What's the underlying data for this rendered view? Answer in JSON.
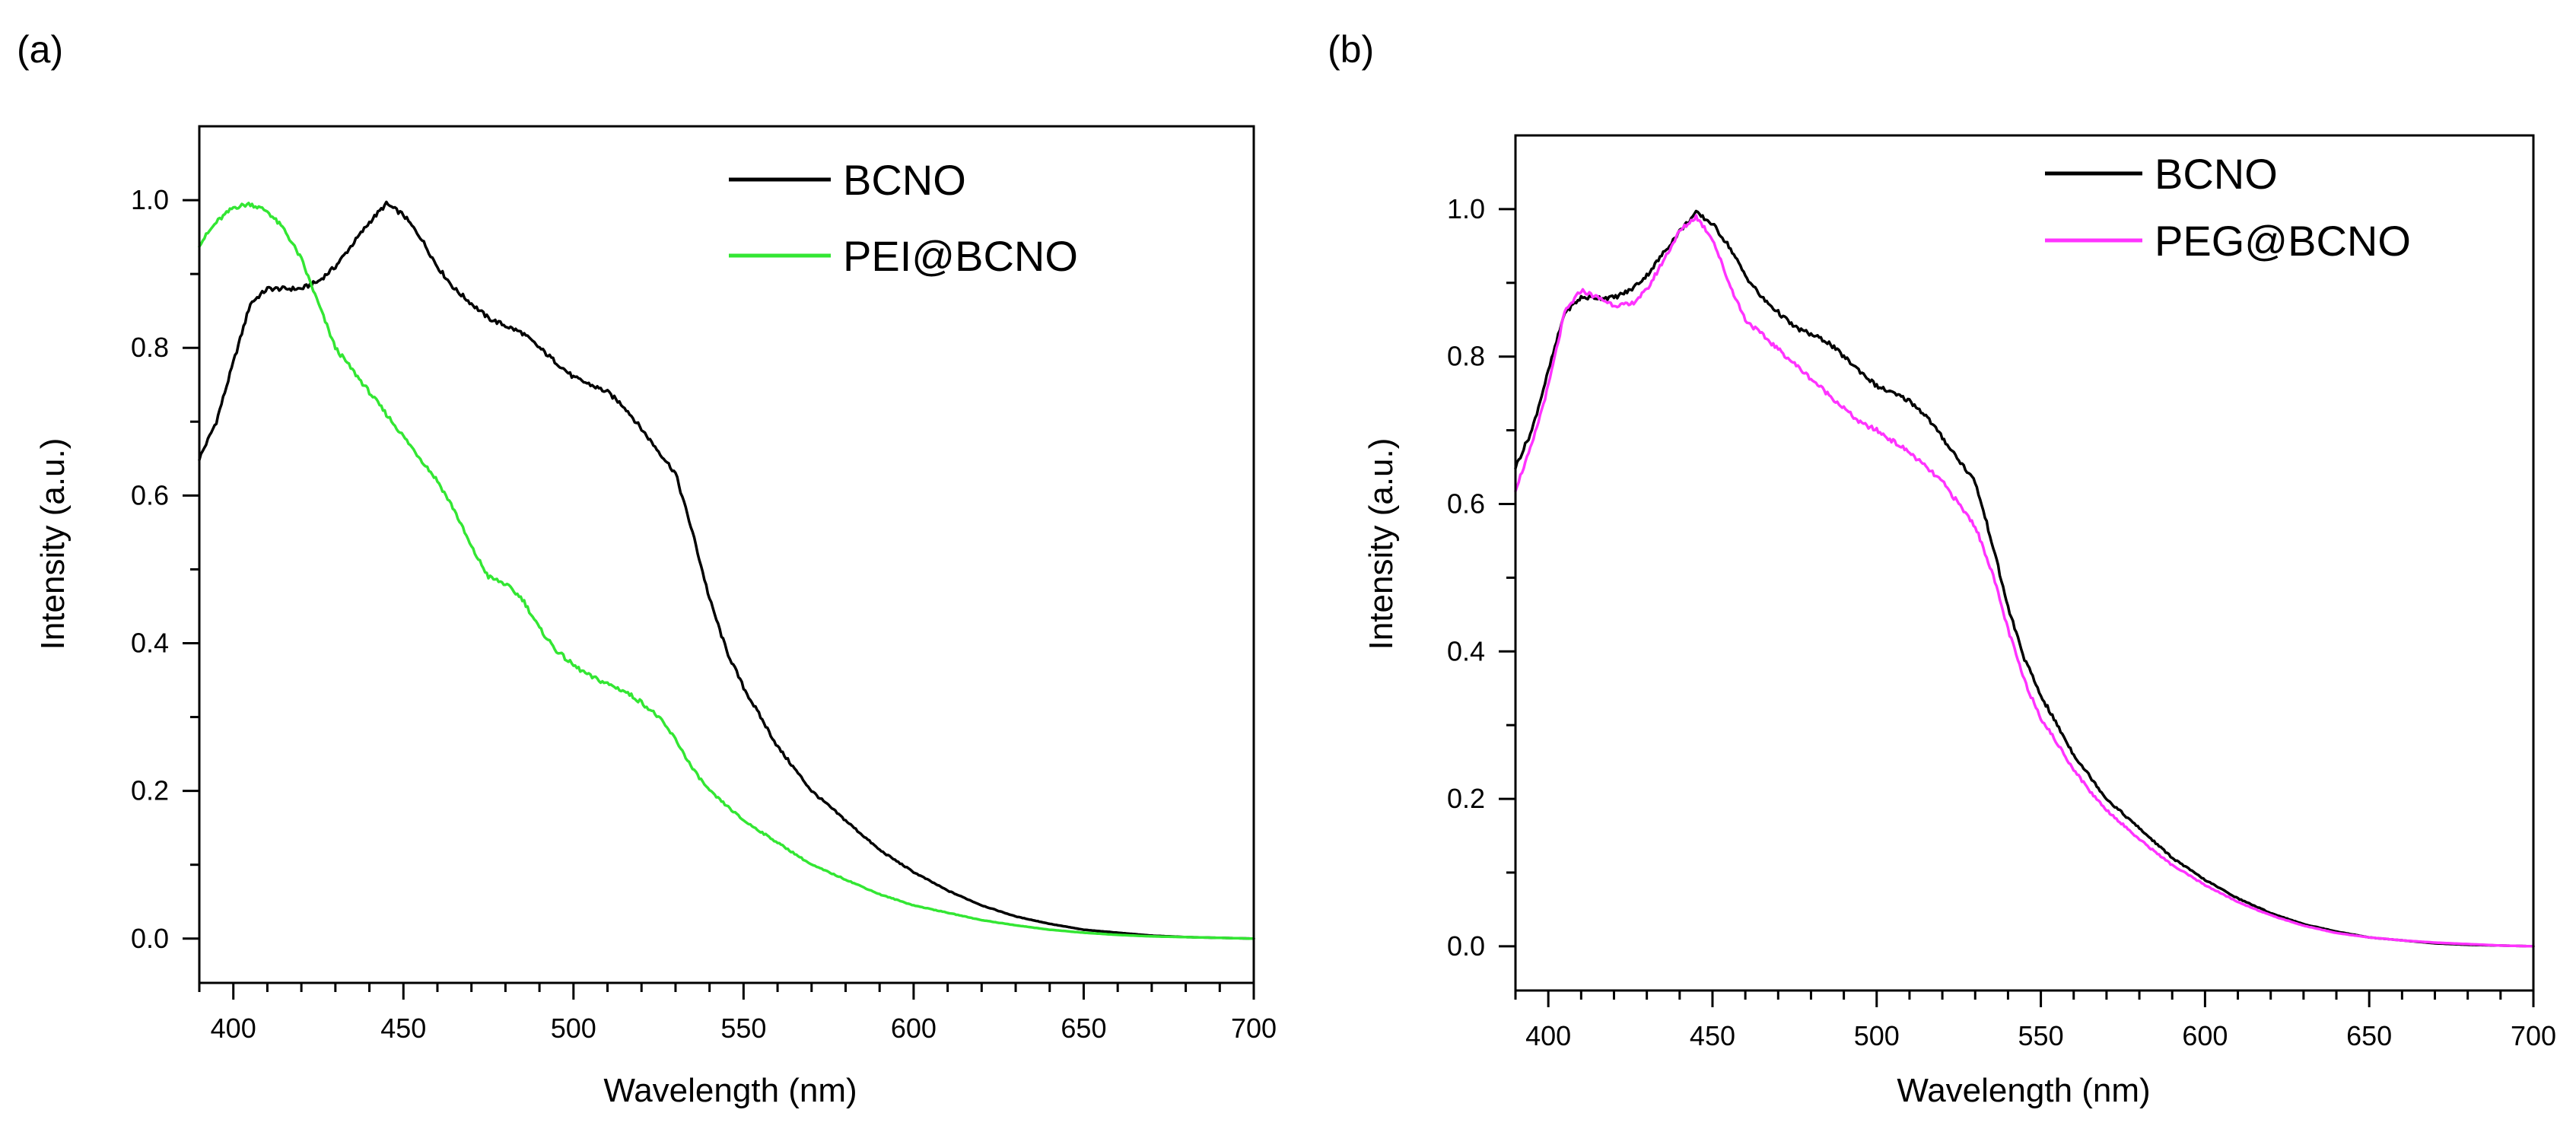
{
  "colors": {
    "BCNO": "#000000",
    "PEI@BCNO": "#33e633",
    "PEG@BCNO": "#ff33ff"
  },
  "chart_data": [
    {
      "panel_label": "(a)",
      "type": "line",
      "title": "",
      "xlabel": "Wavelength (nm)",
      "ylabel": "Intensity (a.u.)",
      "xlim": [
        390,
        700
      ],
      "ylim": [
        -0.06,
        1.1
      ],
      "xticks": [
        400,
        450,
        500,
        550,
        600,
        650,
        700
      ],
      "xtick_labels": [
        "400",
        "450",
        "500",
        "550",
        "600",
        "650",
        "700"
      ],
      "yticks": [
        0.0,
        0.2,
        0.4,
        0.6,
        0.8,
        1.0
      ],
      "ytick_labels": [
        "0.0",
        "0.2",
        "0.4",
        "0.6",
        "0.8",
        "1.0"
      ],
      "legend_position": "top-right",
      "series": [
        {
          "name": "BCNO",
          "color": "#000000",
          "x": [
            390,
            395,
            400,
            405,
            410,
            415,
            420,
            425,
            430,
            435,
            440,
            445,
            450,
            455,
            460,
            465,
            470,
            475,
            480,
            485,
            490,
            495,
            500,
            505,
            510,
            515,
            520,
            525,
            530,
            535,
            540,
            545,
            550,
            555,
            560,
            565,
            570,
            575,
            580,
            590,
            600,
            610,
            620,
            630,
            640,
            650,
            660,
            670,
            680,
            690,
            700
          ],
          "values": [
            0.65,
            0.7,
            0.78,
            0.86,
            0.88,
            0.88,
            0.88,
            0.89,
            0.91,
            0.94,
            0.97,
            0.995,
            0.98,
            0.95,
            0.91,
            0.88,
            0.86,
            0.84,
            0.83,
            0.82,
            0.8,
            0.78,
            0.76,
            0.75,
            0.74,
            0.72,
            0.69,
            0.66,
            0.63,
            0.55,
            0.46,
            0.39,
            0.34,
            0.3,
            0.26,
            0.23,
            0.2,
            0.18,
            0.16,
            0.12,
            0.09,
            0.065,
            0.045,
            0.03,
            0.02,
            0.012,
            0.008,
            0.004,
            0.002,
            0.001,
            0.0
          ]
        },
        {
          "name": "PEI@BCNO",
          "color": "#33e633",
          "x": [
            390,
            395,
            400,
            405,
            410,
            415,
            420,
            425,
            430,
            435,
            440,
            445,
            450,
            455,
            460,
            465,
            470,
            475,
            480,
            485,
            490,
            495,
            500,
            505,
            510,
            515,
            520,
            525,
            530,
            535,
            540,
            545,
            550,
            560,
            570,
            580,
            590,
            600,
            610,
            620,
            630,
            640,
            650,
            660,
            670,
            680,
            690,
            700
          ],
          "values": [
            0.94,
            0.97,
            0.99,
            0.995,
            0.985,
            0.96,
            0.92,
            0.86,
            0.8,
            0.77,
            0.74,
            0.71,
            0.68,
            0.65,
            0.62,
            0.58,
            0.53,
            0.49,
            0.48,
            0.46,
            0.42,
            0.39,
            0.37,
            0.355,
            0.345,
            0.335,
            0.32,
            0.3,
            0.27,
            0.23,
            0.2,
            0.18,
            0.16,
            0.13,
            0.1,
            0.08,
            0.06,
            0.045,
            0.035,
            0.025,
            0.018,
            0.012,
            0.008,
            0.005,
            0.003,
            0.002,
            0.001,
            0.0
          ]
        }
      ]
    },
    {
      "panel_label": "(b)",
      "type": "line",
      "title": "",
      "xlabel": "Wavelength (nm)",
      "ylabel": "Intensity (a.u.)",
      "xlim": [
        390,
        700
      ],
      "ylim": [
        -0.06,
        1.1
      ],
      "xticks": [
        400,
        450,
        500,
        550,
        600,
        650,
        700
      ],
      "xtick_labels": [
        "400",
        "450",
        "500",
        "550",
        "600",
        "650",
        "700"
      ],
      "yticks": [
        0.0,
        0.2,
        0.4,
        0.6,
        0.8,
        1.0
      ],
      "ytick_labels": [
        "0.0",
        "0.2",
        "0.4",
        "0.6",
        "0.8",
        "1.0"
      ],
      "legend_position": "top-right",
      "series": [
        {
          "name": "BCNO",
          "color": "#000000",
          "x": [
            390,
            395,
            400,
            405,
            410,
            415,
            420,
            425,
            430,
            435,
            440,
            445,
            450,
            455,
            460,
            465,
            470,
            475,
            480,
            485,
            490,
            495,
            500,
            505,
            510,
            515,
            520,
            525,
            530,
            535,
            540,
            545,
            550,
            555,
            560,
            565,
            570,
            575,
            580,
            590,
            600,
            610,
            620,
            630,
            640,
            650,
            660,
            670,
            680,
            690,
            700
          ],
          "values": [
            0.65,
            0.7,
            0.78,
            0.86,
            0.88,
            0.88,
            0.88,
            0.89,
            0.91,
            0.94,
            0.97,
            0.995,
            0.98,
            0.95,
            0.91,
            0.88,
            0.86,
            0.84,
            0.83,
            0.82,
            0.8,
            0.78,
            0.76,
            0.75,
            0.74,
            0.72,
            0.69,
            0.66,
            0.63,
            0.55,
            0.46,
            0.39,
            0.34,
            0.3,
            0.26,
            0.23,
            0.2,
            0.18,
            0.16,
            0.12,
            0.09,
            0.065,
            0.045,
            0.03,
            0.02,
            0.012,
            0.008,
            0.004,
            0.002,
            0.001,
            0.0
          ]
        },
        {
          "name": "PEG@BCNO",
          "color": "#ff33ff",
          "x": [
            390,
            395,
            400,
            405,
            410,
            415,
            420,
            425,
            430,
            435,
            440,
            445,
            450,
            455,
            460,
            465,
            470,
            475,
            480,
            485,
            490,
            495,
            500,
            505,
            510,
            515,
            520,
            525,
            530,
            535,
            540,
            545,
            550,
            555,
            560,
            565,
            570,
            575,
            580,
            590,
            600,
            610,
            620,
            630,
            640,
            650,
            660,
            670,
            680,
            690,
            700
          ],
          "values": [
            0.62,
            0.68,
            0.76,
            0.86,
            0.89,
            0.88,
            0.87,
            0.87,
            0.89,
            0.93,
            0.97,
            0.99,
            0.96,
            0.9,
            0.85,
            0.83,
            0.81,
            0.79,
            0.77,
            0.75,
            0.73,
            0.71,
            0.7,
            0.685,
            0.67,
            0.65,
            0.63,
            0.6,
            0.57,
            0.51,
            0.43,
            0.36,
            0.31,
            0.275,
            0.24,
            0.21,
            0.185,
            0.165,
            0.145,
            0.11,
            0.083,
            0.06,
            0.042,
            0.028,
            0.018,
            0.012,
            0.008,
            0.005,
            0.003,
            0.001,
            0.0
          ]
        }
      ]
    }
  ]
}
